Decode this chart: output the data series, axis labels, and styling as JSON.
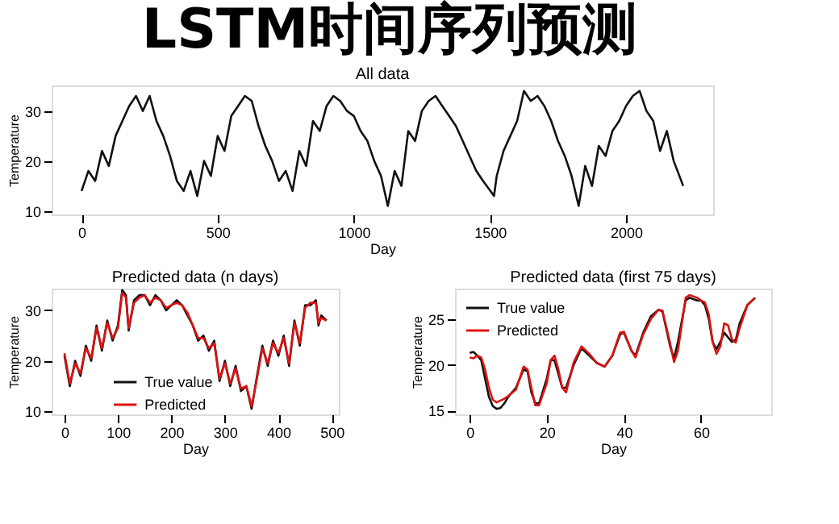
{
  "chart_data": [
    {
      "type": "line",
      "title": "LSTM时间序列预测",
      "subtitle": "All data",
      "xlabel": "Day",
      "ylabel": "Temperature",
      "xlim": [
        -110,
        2320
      ],
      "xticks": [
        0,
        500,
        1000,
        1500,
        2000
      ],
      "ylim": [
        9.3,
        35.1
      ],
      "yticks": [
        10,
        20,
        30
      ],
      "grid": false,
      "legend": false,
      "marker": "none",
      "line_style": "solid",
      "x": [
        0,
        25,
        50,
        75,
        100,
        125,
        150,
        175,
        200,
        225,
        250,
        275,
        300,
        325,
        350,
        375,
        400,
        425,
        450,
        475,
        500,
        525,
        550,
        575,
        600,
        625,
        650,
        675,
        700,
        725,
        750,
        775,
        800,
        825,
        850,
        875,
        900,
        925,
        950,
        975,
        1000,
        1025,
        1050,
        1075,
        1100,
        1125,
        1150,
        1175,
        1200,
        1225,
        1250,
        1275,
        1300,
        1325,
        1350,
        1375,
        1400,
        1425,
        1450,
        1475,
        1515,
        1525,
        1550,
        1575,
        1600,
        1625,
        1650,
        1675,
        1700,
        1725,
        1750,
        1775,
        1800,
        1826,
        1850,
        1875,
        1900,
        1925,
        1950,
        1975,
        2000,
        2025,
        2050,
        2075,
        2100,
        2125,
        2150,
        2175,
        2210
      ],
      "series": [
        {
          "color": "#111111",
          "values": [
            14,
            18,
            16,
            22,
            19,
            25,
            28,
            31,
            33,
            30,
            33,
            28,
            25,
            21,
            16,
            14,
            18,
            13,
            20,
            17,
            25,
            22,
            29,
            31,
            33,
            32,
            27,
            23,
            20,
            16,
            18,
            14,
            22,
            19,
            28,
            26,
            31,
            33,
            32,
            30,
            29,
            26,
            24,
            20,
            17,
            11,
            18,
            15,
            26,
            24,
            30,
            32,
            33,
            31,
            29,
            27,
            24,
            21,
            18,
            16,
            13,
            17,
            22,
            25,
            28,
            34,
            32,
            33,
            31,
            28,
            24,
            21,
            17,
            11,
            19,
            15,
            23,
            21,
            26,
            28,
            31,
            33,
            34,
            30,
            28,
            22,
            26,
            20,
            15
          ]
        }
      ]
    },
    {
      "type": "line",
      "title": "Predicted data (n days)",
      "xlabel": "Day",
      "ylabel": "Temperature",
      "xlim": [
        -24,
        513
      ],
      "xticks": [
        0,
        100,
        200,
        300,
        400,
        500
      ],
      "ylim": [
        9.4,
        34.3
      ],
      "yticks": [
        10,
        20,
        30
      ],
      "grid": false,
      "legend": "bottom left",
      "marker": "none",
      "line_style": "solid",
      "x": [
        0,
        10,
        20,
        30,
        40,
        50,
        60,
        70,
        80,
        90,
        100,
        108,
        115,
        120,
        130,
        140,
        150,
        160,
        170,
        180,
        190,
        200,
        210,
        220,
        230,
        240,
        250,
        260,
        270,
        280,
        290,
        300,
        310,
        320,
        330,
        340,
        350,
        360,
        370,
        380,
        390,
        400,
        410,
        420,
        430,
        440,
        450,
        460,
        470,
        475,
        480,
        490
      ],
      "series": [
        {
          "name": "True value",
          "color": "#111111",
          "values": [
            21,
            15,
            20,
            17,
            23,
            20,
            27,
            22,
            28,
            24,
            27,
            34,
            33,
            26,
            32,
            33,
            33,
            31,
            33,
            32,
            30,
            31,
            32,
            31,
            29,
            27,
            24,
            25,
            22,
            24,
            16,
            20,
            15,
            19,
            14,
            15,
            10.5,
            17,
            23,
            19,
            24,
            21,
            25,
            19,
            28,
            23,
            31,
            31,
            32,
            27,
            29,
            28
          ]
        },
        {
          "name": "Predicted",
          "color": "#dd1111",
          "values": [
            21.5,
            15.5,
            19.5,
            17.5,
            22.5,
            20.5,
            26.5,
            22.5,
            27.5,
            24.5,
            26.5,
            33.5,
            32.5,
            26.5,
            31.5,
            32.5,
            33,
            31.5,
            32.5,
            32,
            30.5,
            31,
            31.5,
            31,
            29.5,
            27,
            24.5,
            24.5,
            22.5,
            23.5,
            16.5,
            19.5,
            15.5,
            18.5,
            14.5,
            15,
            11,
            16.5,
            22.5,
            19.5,
            23.5,
            21.5,
            24.5,
            19.5,
            27.5,
            23.5,
            30.5,
            31.5,
            31.5,
            27.5,
            28.5,
            28
          ]
        }
      ]
    },
    {
      "type": "line",
      "title": "Predicted data (first 75 days)",
      "xlabel": "Day",
      "ylabel": "Temperature",
      "xlim": [
        -3.8,
        78.2
      ],
      "xticks": [
        0,
        20,
        40,
        60
      ],
      "ylim": [
        14.6,
        28.3
      ],
      "yticks": [
        15,
        20,
        25
      ],
      "grid": false,
      "legend": "top left",
      "marker": "none",
      "line_style": "solid",
      "x": [
        0,
        1,
        2,
        3,
        4,
        5,
        6,
        7,
        8,
        9,
        10,
        12,
        14,
        15,
        16,
        17,
        18,
        20,
        21,
        22,
        23,
        24,
        25,
        27,
        29,
        31,
        33,
        35,
        37,
        39,
        40,
        42,
        43,
        45,
        47,
        49,
        50,
        52,
        53,
        54,
        56,
        57,
        59,
        60,
        61,
        62,
        63,
        64,
        65,
        66,
        67,
        68,
        69,
        70,
        72,
        74
      ],
      "series": [
        {
          "name": "True value",
          "color": "#111111",
          "values": [
            21.3,
            21.4,
            21,
            20.5,
            18.5,
            16.5,
            15.5,
            15.2,
            15.3,
            15.8,
            16.5,
            17.5,
            19.5,
            19.3,
            17,
            15.8,
            15.8,
            18.5,
            20.5,
            20.5,
            19,
            17.5,
            17.5,
            20,
            21.8,
            21,
            20.2,
            19.8,
            21,
            23.3,
            23.5,
            21.5,
            21,
            23.5,
            25.3,
            26,
            25.8,
            22,
            20.7,
            22.5,
            27,
            27.3,
            27,
            27,
            26.5,
            25,
            22.5,
            21.7,
            22.5,
            23.5,
            23,
            22.5,
            22.7,
            24.5,
            26.5,
            27.3
          ]
        },
        {
          "name": "Predicted",
          "color": "#dd1111",
          "values": [
            20.8,
            20.7,
            21,
            20.8,
            19.5,
            17.5,
            16.2,
            15.9,
            16.1,
            16.3,
            16.6,
            17.3,
            19.8,
            19.5,
            17.5,
            15.6,
            15.6,
            18,
            20.5,
            21,
            19.5,
            17.5,
            17,
            20.3,
            22,
            21.2,
            20.2,
            19.8,
            21,
            23.5,
            23.6,
            21.5,
            20.8,
            23.3,
            25,
            26,
            25.9,
            22.3,
            20.3,
            21.5,
            27.3,
            27.6,
            27.3,
            27,
            26.8,
            25.5,
            22.5,
            21.2,
            22,
            24.5,
            24.3,
            22.8,
            22.4,
            24,
            26.5,
            27.3
          ]
        }
      ]
    }
  ]
}
